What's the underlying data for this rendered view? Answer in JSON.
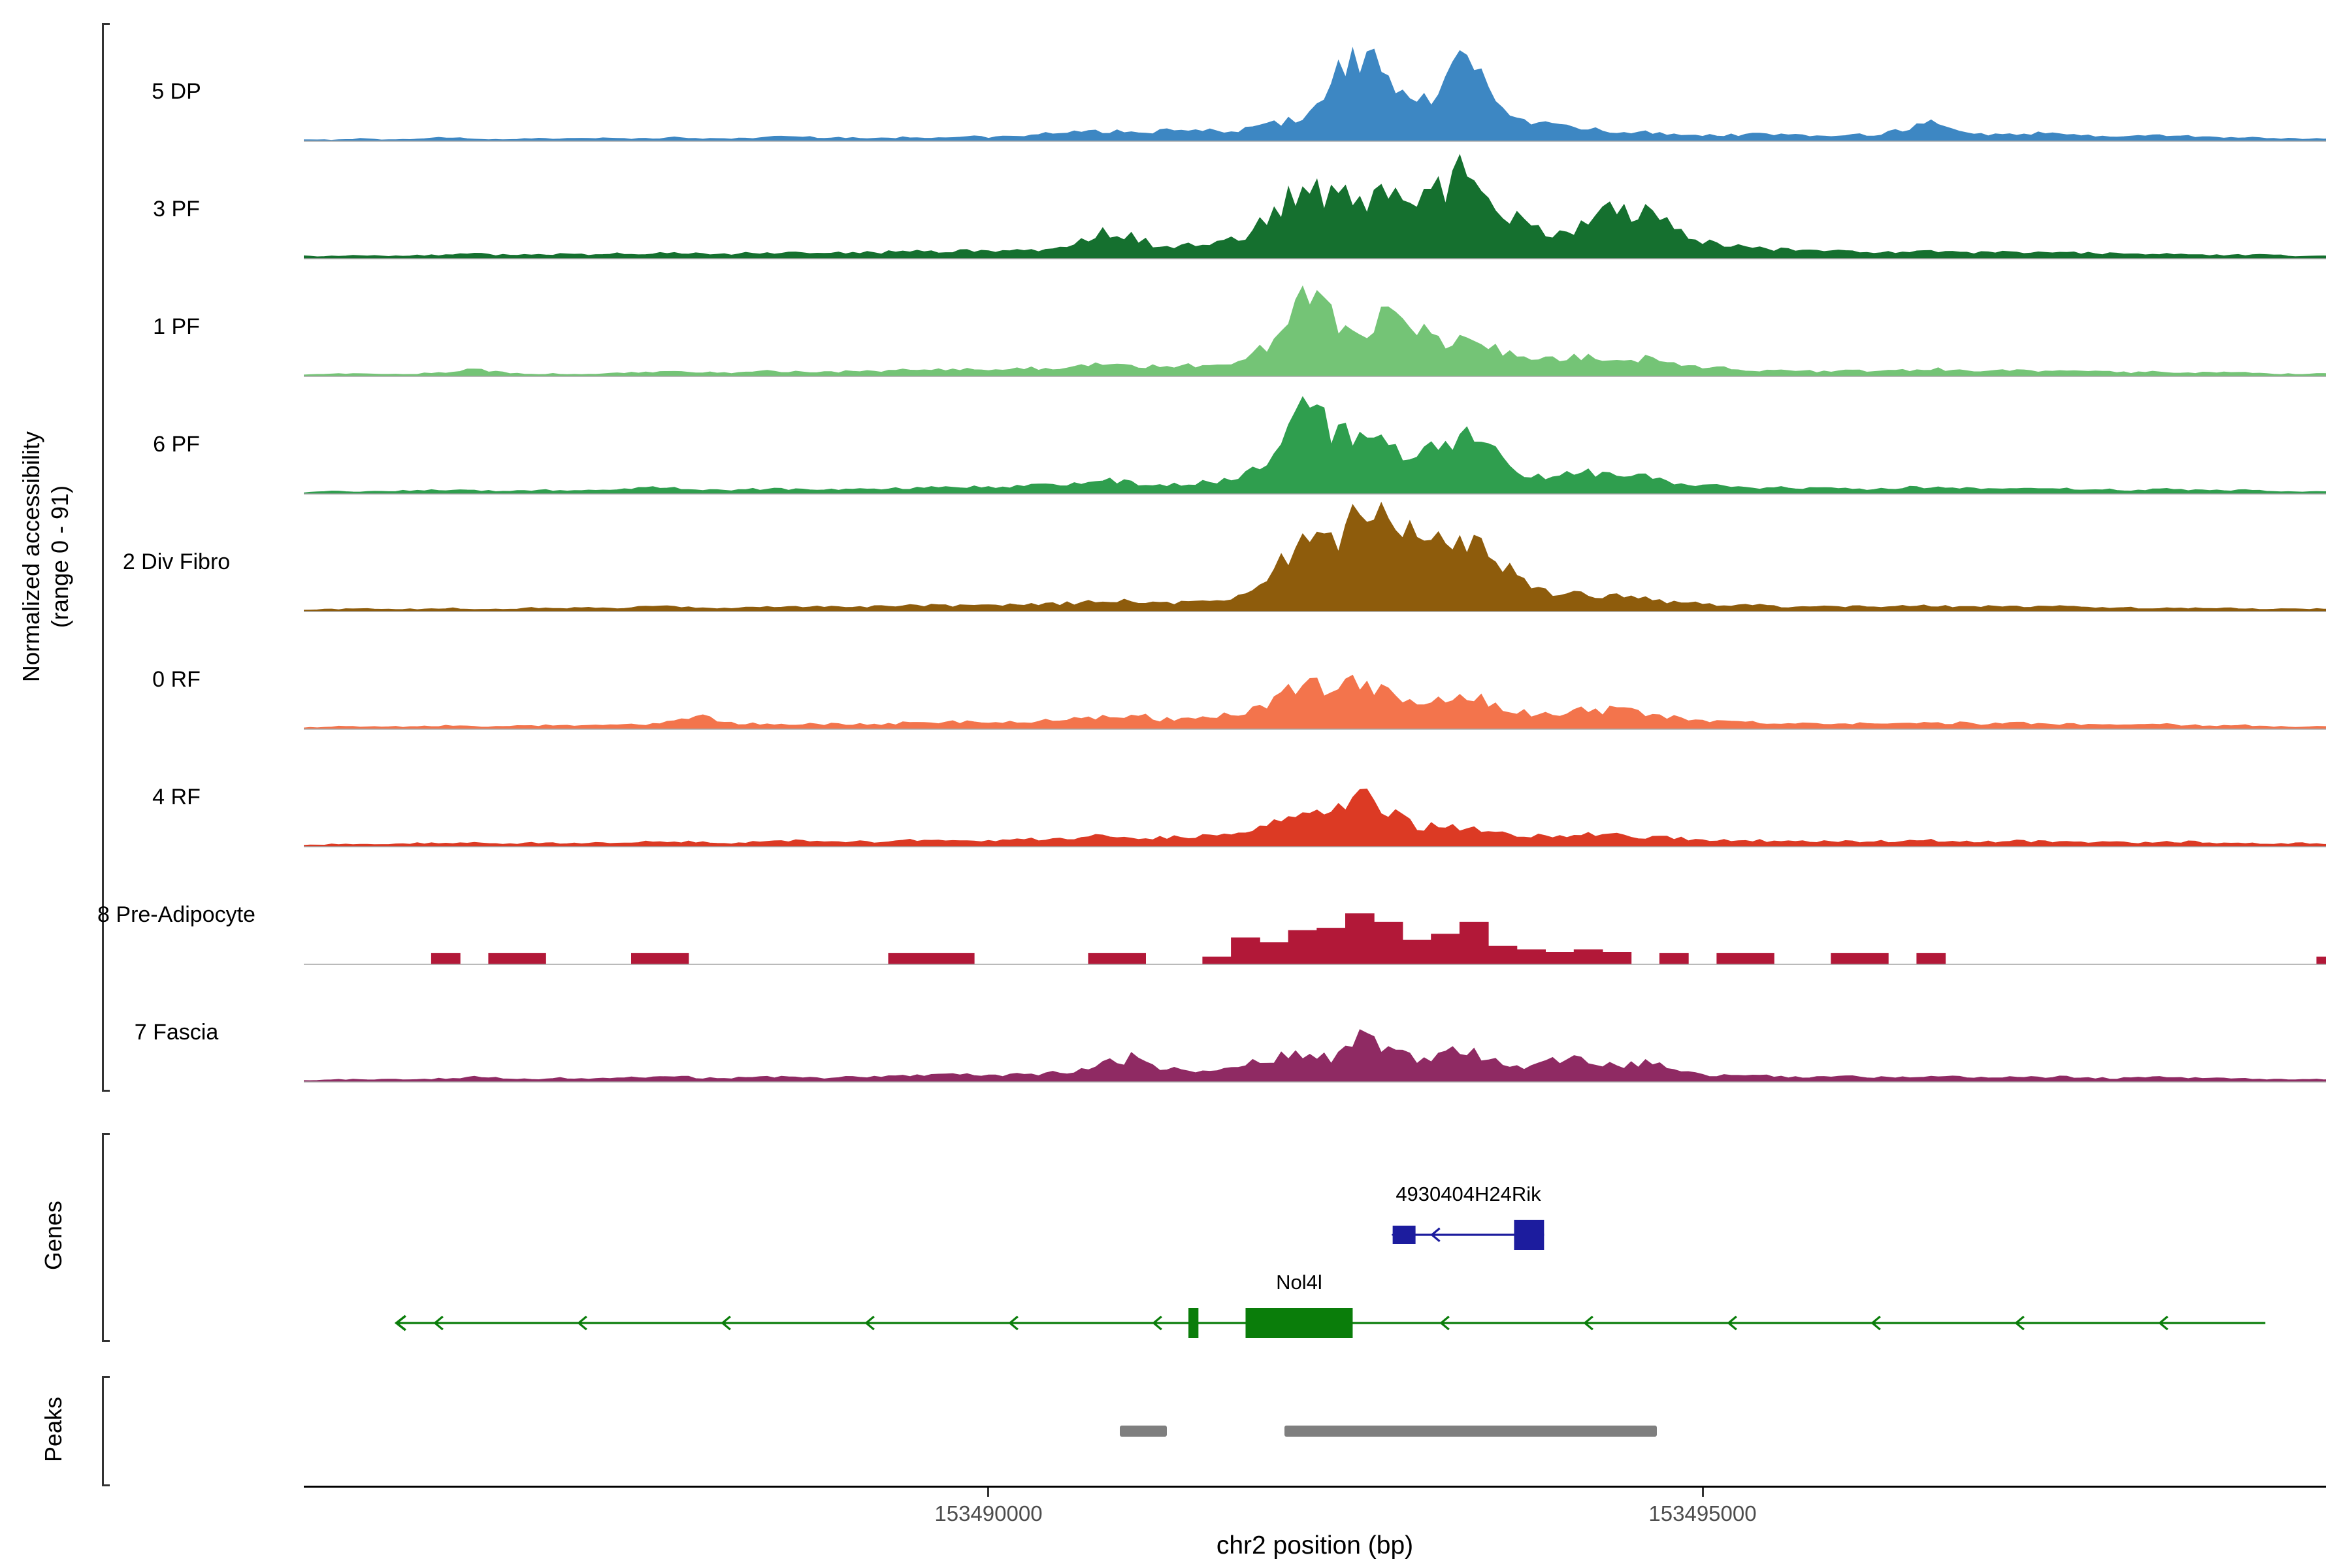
{
  "figure": {
    "y_axis_label_line1": "Normalized accessibility",
    "y_axis_label_line2": "(range 0 - 91)",
    "genes_section_label": "Genes",
    "peaks_section_label": "Peaks",
    "x_axis_title": "chr2 position (bp)",
    "chromosome": "chr2",
    "x_ticks": [
      {
        "bp": 153490000,
        "label": "153490000"
      },
      {
        "bp": 153495000,
        "label": "153495000"
      }
    ]
  },
  "chart_data": {
    "type": "area",
    "title": "",
    "xlabel": "chr2 position (bp)",
    "ylabel": "Normalized accessibility (range 0 - 91)",
    "x_start_bp": 153485200,
    "x_step_bp": 200,
    "x_range_bp": [
      153485206,
      153499364
    ],
    "y_range": [
      0,
      91
    ],
    "grid": false,
    "tracks": [
      {
        "name": "5 DP",
        "color": "#3d87c3",
        "style": "area",
        "values": [
          1,
          1,
          2,
          1,
          2,
          3,
          2,
          1,
          2,
          2,
          3,
          2,
          2,
          3,
          2,
          2,
          3,
          4,
          3,
          3,
          2,
          3,
          3,
          4,
          3,
          4,
          6,
          7,
          8,
          7,
          8,
          9,
          8,
          10,
          14,
          20,
          50,
          72,
          55,
          28,
          45,
          76,
          30,
          15,
          12,
          10,
          8,
          7,
          6,
          5,
          5,
          6,
          5,
          4,
          6,
          5,
          10,
          15,
          8,
          5,
          6,
          7,
          5,
          4,
          4,
          5,
          4,
          3,
          3,
          2,
          2,
          2
        ]
      },
      {
        "name": "3 PF",
        "color": "#15702f",
        "style": "area",
        "values": [
          2,
          2,
          3,
          2,
          3,
          3,
          4,
          3,
          3,
          4,
          3,
          4,
          4,
          5,
          4,
          4,
          5,
          5,
          4,
          5,
          5,
          6,
          6,
          7,
          6,
          7,
          8,
          10,
          24,
          18,
          10,
          12,
          14,
          20,
          40,
          58,
          52,
          48,
          55,
          45,
          60,
          86,
          40,
          25,
          20,
          30,
          42,
          38,
          25,
          15,
          10,
          8,
          7,
          6,
          6,
          5,
          5,
          6,
          5,
          5,
          6,
          5,
          5,
          4,
          4,
          4,
          3,
          3,
          3,
          3,
          2,
          2
        ]
      },
      {
        "name": "1 PF",
        "color": "#74c476",
        "style": "area",
        "values": [
          1,
          2,
          2,
          2,
          2,
          3,
          6,
          3,
          2,
          2,
          2,
          3,
          3,
          4,
          3,
          3,
          4,
          4,
          3,
          4,
          4,
          5,
          5,
          6,
          5,
          6,
          7,
          8,
          10,
          8,
          8,
          9,
          10,
          14,
          28,
          68,
          48,
          35,
          50,
          38,
          25,
          36,
          20,
          12,
          14,
          16,
          15,
          14,
          12,
          8,
          6,
          5,
          5,
          4,
          5,
          4,
          5,
          6,
          5,
          4,
          5,
          4,
          4,
          4,
          3,
          4,
          3,
          3,
          3,
          2,
          2,
          2
        ]
      },
      {
        "name": "6 PF",
        "color": "#2f9e4e",
        "style": "area",
        "values": [
          1,
          2,
          2,
          2,
          3,
          3,
          3,
          2,
          3,
          3,
          3,
          4,
          6,
          5,
          3,
          3,
          4,
          4,
          4,
          4,
          4,
          5,
          5,
          6,
          5,
          6,
          7,
          8,
          12,
          9,
          8,
          9,
          10,
          15,
          30,
          74,
          52,
          44,
          40,
          30,
          42,
          54,
          26,
          14,
          16,
          18,
          16,
          14,
          10,
          7,
          6,
          5,
          5,
          5,
          4,
          4,
          5,
          6,
          5,
          4,
          5,
          4,
          4,
          4,
          3,
          4,
          3,
          3,
          3,
          2,
          2,
          2
        ]
      },
      {
        "name": "2 Div Fibro",
        "color": "#8e5c0c",
        "style": "area",
        "values": [
          1,
          2,
          2,
          2,
          2,
          3,
          2,
          2,
          3,
          3,
          3,
          3,
          4,
          4,
          3,
          3,
          4,
          4,
          4,
          4,
          4,
          5,
          5,
          5,
          5,
          6,
          6,
          7,
          9,
          8,
          7,
          8,
          9,
          14,
          35,
          60,
          55,
          82,
          70,
          62,
          65,
          58,
          40,
          20,
          14,
          15,
          12,
          10,
          8,
          6,
          5,
          5,
          4,
          4,
          4,
          4,
          5,
          5,
          4,
          4,
          4,
          4,
          4,
          3,
          3,
          3,
          3,
          3,
          2,
          2,
          2,
          2
        ]
      },
      {
        "name": "0 RF",
        "color": "#f3744c",
        "style": "area",
        "values": [
          1,
          2,
          2,
          2,
          2,
          3,
          2,
          2,
          3,
          3,
          3,
          3,
          4,
          6,
          10,
          5,
          4,
          4,
          4,
          4,
          4,
          5,
          5,
          6,
          5,
          6,
          7,
          8,
          11,
          12,
          8,
          9,
          10,
          14,
          24,
          38,
          34,
          40,
          30,
          22,
          24,
          30,
          18,
          12,
          14,
          16,
          15,
          13,
          10,
          7,
          6,
          5,
          5,
          4,
          5,
          4,
          5,
          5,
          5,
          4,
          5,
          4,
          4,
          4,
          3,
          4,
          3,
          3,
          3,
          2,
          2,
          2
        ]
      },
      {
        "name": "4 RF",
        "color": "#dc3a24",
        "style": "area",
        "values": [
          1,
          2,
          2,
          2,
          3,
          3,
          3,
          2,
          3,
          3,
          3,
          3,
          4,
          4,
          4,
          3,
          4,
          5,
          4,
          4,
          4,
          5,
          5,
          5,
          5,
          6,
          6,
          7,
          9,
          8,
          7,
          8,
          9,
          12,
          20,
          28,
          26,
          46,
          30,
          16,
          18,
          14,
          10,
          8,
          10,
          10,
          9,
          8,
          7,
          6,
          5,
          5,
          4,
          4,
          5,
          4,
          5,
          5,
          4,
          4,
          5,
          4,
          4,
          4,
          3,
          4,
          4,
          3,
          3,
          2,
          3,
          2
        ]
      },
      {
        "name": "8 Pre-Adipocyte",
        "color": "#b21838",
        "style": "block",
        "values": [
          0,
          0,
          0,
          0,
          0,
          9,
          0,
          9,
          9,
          0,
          0,
          0,
          9,
          9,
          0,
          0,
          0,
          0,
          0,
          0,
          0,
          9,
          9,
          9,
          0,
          0,
          0,
          0,
          9,
          9,
          0,
          0,
          6,
          22,
          18,
          28,
          30,
          42,
          35,
          20,
          25,
          35,
          15,
          12,
          10,
          12,
          10,
          0,
          9,
          0,
          9,
          9,
          0,
          0,
          9,
          9,
          0,
          9,
          0,
          0,
          0,
          0,
          0,
          0,
          0,
          0,
          0,
          0,
          0,
          0,
          0,
          6
        ]
      },
      {
        "name": "7 Fascia",
        "color": "#8f2a63",
        "style": "area",
        "values": [
          1,
          2,
          2,
          2,
          2,
          3,
          4,
          3,
          2,
          3,
          3,
          4,
          4,
          5,
          3,
          3,
          4,
          4,
          3,
          4,
          4,
          5,
          6,
          6,
          5,
          6,
          7,
          8,
          14,
          20,
          12,
          8,
          9,
          14,
          20,
          24,
          20,
          36,
          28,
          18,
          26,
          24,
          16,
          12,
          20,
          18,
          14,
          16,
          10,
          6,
          5,
          5,
          4,
          4,
          5,
          4,
          4,
          5,
          4,
          4,
          4,
          4,
          4,
          3,
          3,
          4,
          3,
          3,
          3,
          2,
          2,
          2
        ]
      }
    ],
    "genes": [
      {
        "name": "4930404H24Rik",
        "color": "#1c1c9e",
        "strand": "-",
        "start_bp": 153492830,
        "end_bp": 153493890,
        "exons": [
          {
            "start": 153492830,
            "end": 153492990,
            "type": "utr"
          },
          {
            "start": 153493680,
            "end": 153493890,
            "type": "cds"
          }
        ]
      },
      {
        "name": "Nol4l",
        "color": "#0a7d0a",
        "strand": "-",
        "start_bp": 153485850,
        "end_bp": 153498940,
        "exons": [
          {
            "start": 153491400,
            "end": 153491470,
            "type": "cds"
          },
          {
            "start": 153491800,
            "end": 153492550,
            "type": "cds"
          }
        ]
      }
    ],
    "peaks": [
      {
        "start_bp": 153490920,
        "end_bp": 153491250
      },
      {
        "start_bp": 153492070,
        "end_bp": 153494680
      }
    ],
    "peak_color": "#7f7f7f"
  }
}
